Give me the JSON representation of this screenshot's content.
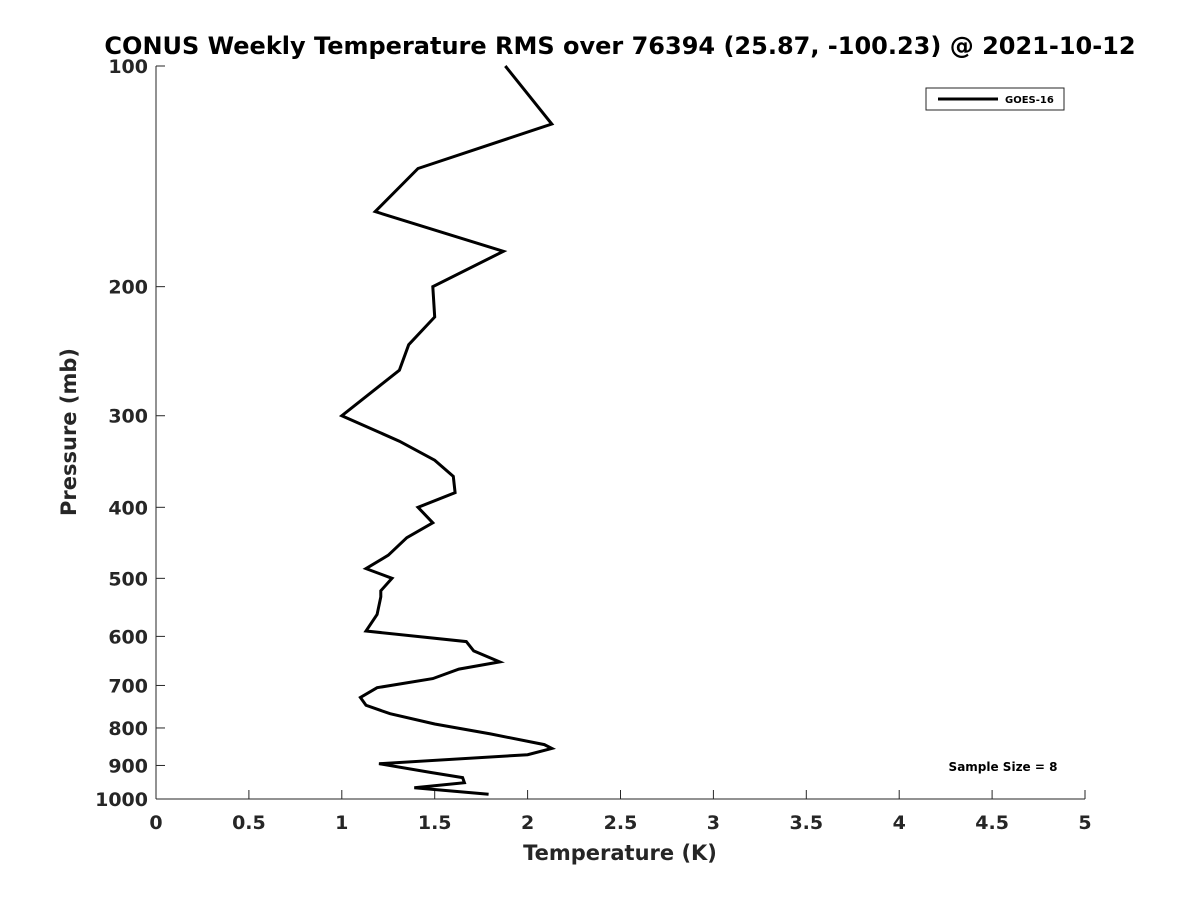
{
  "chart_data": {
    "type": "line",
    "title": "CONUS Weekly Temperature RMS over 76394 (25.87, -100.23) @ 2021-10-12",
    "xlabel": "Temperature (K)",
    "ylabel": "Pressure (mb)",
    "xlim": [
      0,
      5
    ],
    "ylim": [
      100,
      1000
    ],
    "y_scale": "log",
    "y_reversed": true,
    "grid": false,
    "legend_position": "top-right",
    "x_ticks": [
      0,
      0.5,
      1,
      1.5,
      2,
      2.5,
      3,
      3.5,
      4,
      4.5,
      5
    ],
    "x_tick_labels": [
      "0",
      "0.5",
      "1",
      "1.5",
      "2",
      "2.5",
      "3",
      "3.5",
      "4",
      "4.5",
      "5"
    ],
    "y_ticks": [
      100,
      200,
      300,
      400,
      500,
      600,
      700,
      800,
      900,
      1000
    ],
    "y_tick_labels": [
      "100",
      "200",
      "300",
      "400",
      "500",
      "600",
      "700",
      "800",
      "900",
      "1000"
    ],
    "series": [
      {
        "name": "GOES-16",
        "color": "#000000",
        "points": [
          [
            1.88,
            100
          ],
          [
            2.13,
            120
          ],
          [
            1.41,
            138
          ],
          [
            1.18,
            158
          ],
          [
            1.87,
            179
          ],
          [
            1.49,
            200
          ],
          [
            1.5,
            220
          ],
          [
            1.36,
            240
          ],
          [
            1.31,
            260
          ],
          [
            1.0,
            300
          ],
          [
            1.31,
            325
          ],
          [
            1.5,
            345
          ],
          [
            1.6,
            363
          ],
          [
            1.61,
            382
          ],
          [
            1.41,
            400
          ],
          [
            1.49,
            420
          ],
          [
            1.35,
            440
          ],
          [
            1.25,
            465
          ],
          [
            1.13,
            485
          ],
          [
            1.27,
            500
          ],
          [
            1.21,
            520
          ],
          [
            1.21,
            530
          ],
          [
            1.19,
            560
          ],
          [
            1.13,
            590
          ],
          [
            1.67,
            610
          ],
          [
            1.71,
            628
          ],
          [
            1.85,
            650
          ],
          [
            1.63,
            665
          ],
          [
            1.49,
            685
          ],
          [
            1.19,
            705
          ],
          [
            1.1,
            727
          ],
          [
            1.13,
            745
          ],
          [
            1.26,
            765
          ],
          [
            1.5,
            790
          ],
          [
            1.8,
            815
          ],
          [
            2.09,
            843
          ],
          [
            2.13,
            853
          ],
          [
            2.0,
            870
          ],
          [
            1.2,
            895
          ],
          [
            1.48,
            920
          ],
          [
            1.65,
            935
          ],
          [
            1.66,
            950
          ],
          [
            1.39,
            965
          ],
          [
            1.79,
            985
          ]
        ]
      }
    ],
    "annotations": [
      {
        "text": "Sample Size = 8",
        "position": "bottom-right"
      }
    ]
  }
}
